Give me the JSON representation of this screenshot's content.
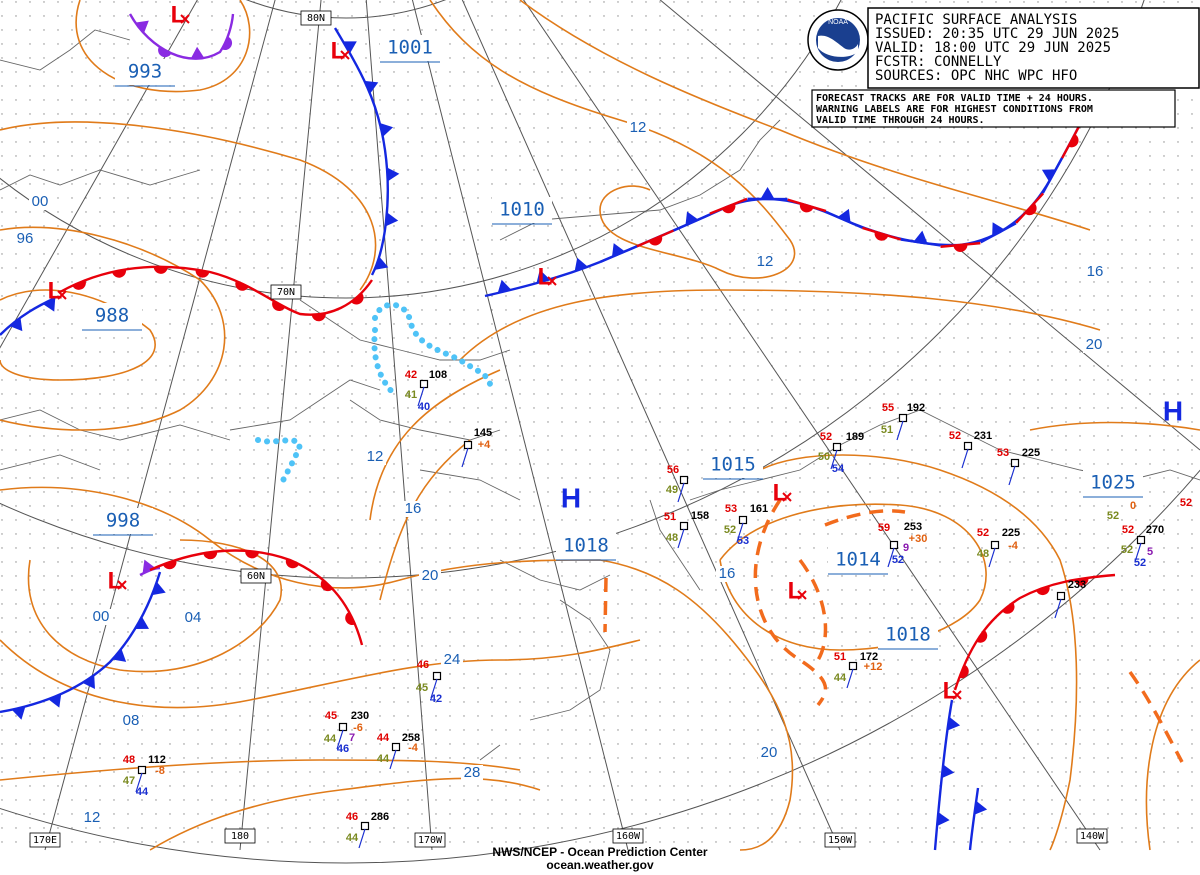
{
  "header": {
    "title": "PACIFIC SURFACE ANALYSIS",
    "issued": "ISSUED: 20:35 UTC 29 JUN 2025",
    "valid": "VALID:  18:00 UTC 29 JUN 2025",
    "forecaster": "FCSTR:  CONNELLY",
    "sources": "SOURCES: OPC NHC WPC HFO"
  },
  "notice": [
    "FORECAST TRACKS ARE FOR VALID TIME + 24 HOURS.",
    "WARNING LABELS ARE FOR HIGHEST CONDITIONS FROM",
    "VALID TIME THROUGH 24 HOURS."
  ],
  "logo": "NOAA",
  "footer": [
    "NWS/NCEP - Ocean Prediction Center",
    "ocean.weather.gov"
  ],
  "grid_labels": [
    "80N",
    "70N",
    "60N",
    "170E",
    "180",
    "170W",
    "160W",
    "150W",
    "140W"
  ],
  "pressure_centers": [
    "993",
    "1001",
    "988",
    "1010",
    "1015",
    "998",
    "1018",
    "1014",
    "1018",
    "1025"
  ],
  "isobar_labels": [
    "12",
    "00",
    "96",
    "12",
    "16",
    "20",
    "12",
    "16",
    "20",
    "16",
    "00",
    "04",
    "24",
    "08",
    "28",
    "20",
    "12"
  ],
  "symbols": {
    "high": "H",
    "low": "L"
  },
  "stations": [
    [
      "42",
      "108",
      "41",
      "40"
    ],
    [
      "145",
      "+4"
    ],
    [
      "56",
      "49"
    ],
    [
      "51",
      "158",
      "48"
    ],
    [
      "53",
      "161",
      "52",
      "53"
    ],
    [
      "52",
      "189",
      "50",
      "54"
    ],
    [
      "55",
      "192",
      "51"
    ],
    [
      "52",
      "231"
    ],
    [
      "53",
      "225"
    ],
    [
      "59",
      "253",
      "+30",
      "9",
      "52"
    ],
    [
      "52",
      "225",
      "-4",
      "48"
    ],
    [
      "52",
      "270",
      "52",
      "5",
      "52"
    ],
    [
      "52",
      "0"
    ],
    [
      "52"
    ],
    [
      "233"
    ],
    [
      "51",
      "172",
      "+12",
      "44"
    ],
    [
      "48",
      "112",
      "-8",
      "47",
      "44"
    ],
    [
      "45",
      "230",
      "-6",
      "44",
      "7",
      "46"
    ],
    [
      "44",
      "258",
      "-4",
      "44"
    ],
    [
      "46",
      "45",
      "42"
    ],
    [
      "46",
      "286",
      "44"
    ]
  ]
}
